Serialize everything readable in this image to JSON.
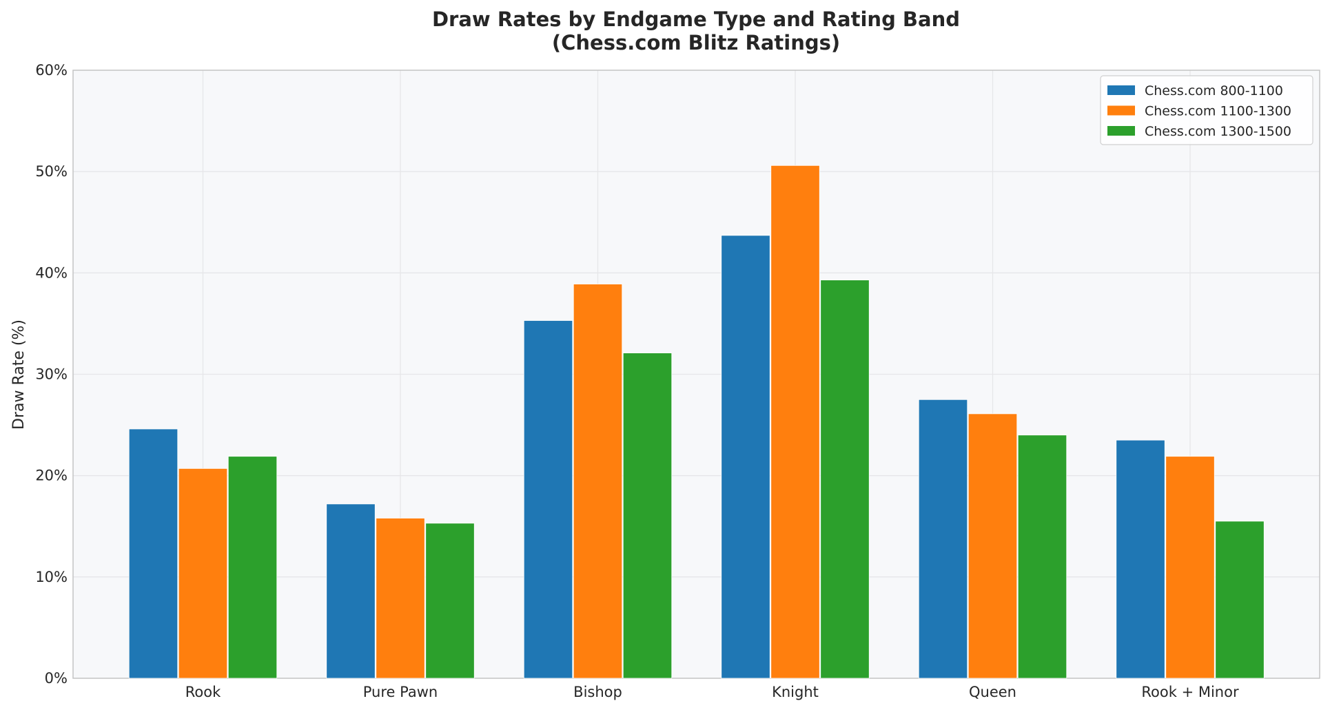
{
  "chart_data": {
    "type": "bar",
    "title": "Draw Rates by Endgame Type and Rating Band",
    "subtitle": "(Chess.com Blitz Ratings)",
    "xlabel": "",
    "ylabel": "Draw Rate (%)",
    "ylim": [
      0,
      60
    ],
    "y_ticks": [
      "0%",
      "10%",
      "20%",
      "30%",
      "40%",
      "50%",
      "60%"
    ],
    "y_tick_values": [
      0,
      10,
      20,
      30,
      40,
      50,
      60
    ],
    "grid": true,
    "legend_position": "top-right",
    "categories": [
      "Rook",
      "Pure Pawn",
      "Bishop",
      "Knight",
      "Queen",
      "Rook + Minor"
    ],
    "series": [
      {
        "name": "Chess.com 800-1100",
        "color": "#1f77b4",
        "values": [
          24.6,
          17.2,
          35.3,
          43.7,
          27.5,
          23.5
        ]
      },
      {
        "name": "Chess.com 1100-1300",
        "color": "#ff7f0e",
        "values": [
          20.7,
          15.8,
          38.9,
          50.6,
          26.1,
          21.9
        ]
      },
      {
        "name": "Chess.com 1300-1500",
        "color": "#2ca02c",
        "values": [
          21.9,
          15.3,
          32.1,
          39.3,
          24.0,
          15.5
        ]
      }
    ]
  }
}
